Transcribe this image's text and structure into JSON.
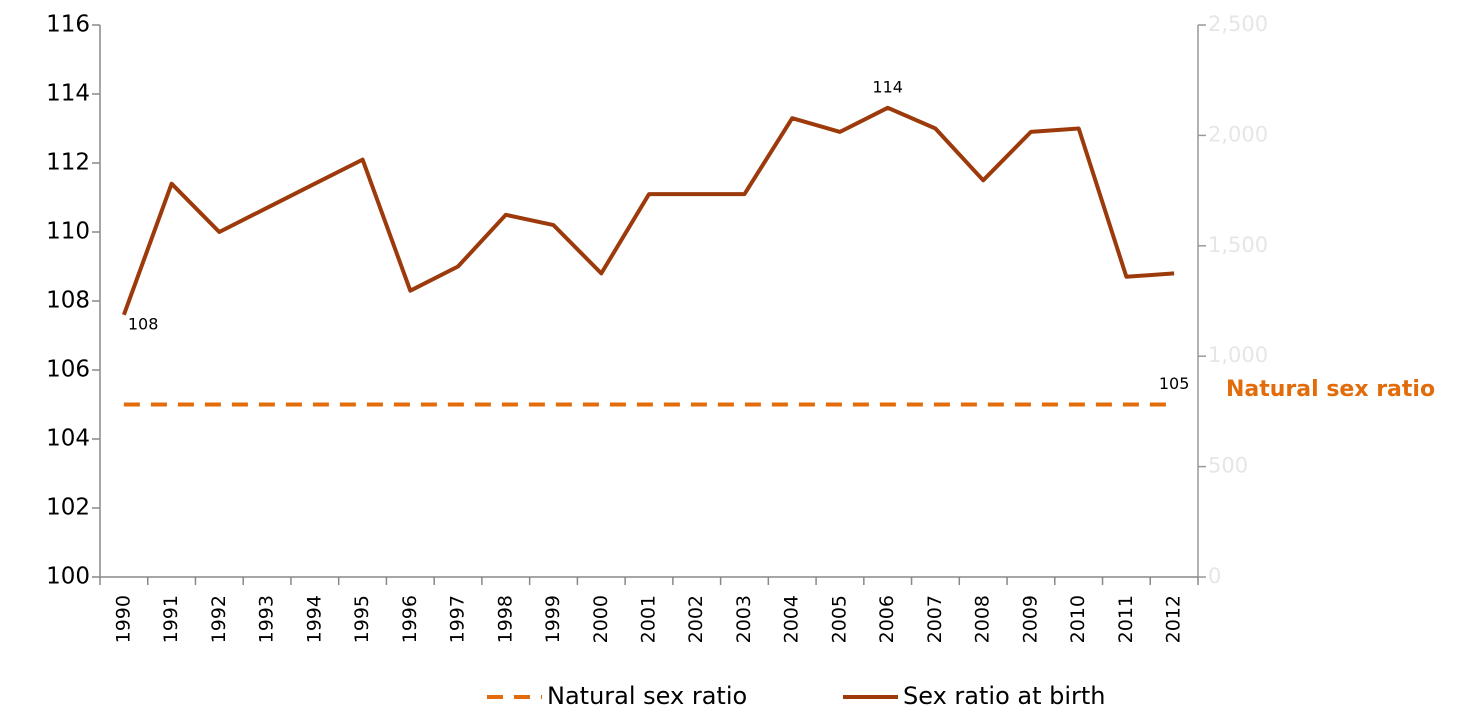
{
  "chart_data": {
    "type": "line",
    "categories": [
      "1990",
      "1991",
      "1992",
      "1993",
      "1994",
      "1995",
      "1996",
      "1997",
      "1998",
      "1999",
      "2000",
      "2001",
      "2002",
      "2003",
      "2004",
      "2005",
      "2006",
      "2007",
      "2008",
      "2009",
      "2010",
      "2011",
      "2012"
    ],
    "series": [
      {
        "name": "Natural sex ratio",
        "color": "#e36c0a",
        "dashed": true,
        "values": [
          105,
          105,
          105,
          105,
          105,
          105,
          105,
          105,
          105,
          105,
          105,
          105,
          105,
          105,
          105,
          105,
          105,
          105,
          105,
          105,
          105,
          105,
          105
        ],
        "value_labels": [
          null,
          null,
          null,
          null,
          null,
          null,
          null,
          null,
          null,
          null,
          null,
          null,
          null,
          null,
          null,
          null,
          null,
          null,
          null,
          null,
          null,
          null,
          "105"
        ]
      },
      {
        "name": "Sex ratio at birth",
        "color": "#9c3a0b",
        "dashed": false,
        "values": [
          107.6,
          111.4,
          110.0,
          110.7,
          111.4,
          112.1,
          108.3,
          109.0,
          110.5,
          110.2,
          108.8,
          111.1,
          111.1,
          111.1,
          113.3,
          112.9,
          113.6,
          113.0,
          111.5,
          112.9,
          113.0,
          108.7,
          108.8
        ],
        "value_labels": [
          "108",
          null,
          null,
          null,
          null,
          null,
          null,
          null,
          null,
          null,
          null,
          null,
          null,
          null,
          null,
          null,
          "114",
          null,
          null,
          null,
          null,
          null,
          null
        ]
      }
    ],
    "ylim": [
      100,
      116
    ],
    "yticks": [
      100,
      102,
      104,
      106,
      108,
      110,
      112,
      114,
      116
    ],
    "y2lim": [
      0,
      2500
    ],
    "y2ticks": [
      0,
      500,
      {
        "value": 1000,
        "label": "1,000"
      },
      {
        "value": 1500,
        "label": "1,500"
      },
      {
        "value": 2000,
        "label": "2,000"
      },
      {
        "value": 2500,
        "label": "2,500"
      }
    ],
    "annotation": "Natural sex ratio",
    "legend": "bottom"
  }
}
